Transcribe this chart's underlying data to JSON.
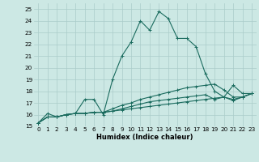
{
  "title": "",
  "xlabel": "Humidex (Indice chaleur)",
  "background_color": "#cce8e4",
  "grid_color": "#aaccca",
  "line_color": "#1a6b5e",
  "xlim": [
    -0.5,
    23.5
  ],
  "ylim": [
    15,
    25.5
  ],
  "yticks": [
    15,
    16,
    17,
    18,
    19,
    20,
    21,
    22,
    23,
    24,
    25
  ],
  "xticks": [
    0,
    1,
    2,
    3,
    4,
    5,
    6,
    7,
    8,
    9,
    10,
    11,
    12,
    13,
    14,
    15,
    16,
    17,
    18,
    19,
    20,
    21,
    22,
    23
  ],
  "series": [
    [
      15.3,
      16.1,
      15.8,
      16.0,
      16.1,
      17.3,
      17.3,
      16.0,
      19.0,
      21.0,
      22.2,
      24.0,
      23.2,
      24.8,
      24.2,
      22.5,
      22.5,
      21.8,
      19.5,
      18.0,
      17.5,
      18.5,
      17.8,
      17.8
    ],
    [
      15.3,
      15.8,
      15.8,
      16.0,
      16.1,
      16.1,
      16.2,
      16.2,
      16.5,
      16.8,
      17.0,
      17.3,
      17.5,
      17.7,
      17.9,
      18.1,
      18.3,
      18.4,
      18.5,
      18.6,
      18.1,
      17.5,
      17.5,
      17.8
    ],
    [
      15.3,
      15.8,
      15.8,
      16.0,
      16.1,
      16.1,
      16.2,
      16.2,
      16.3,
      16.5,
      16.7,
      16.9,
      17.1,
      17.2,
      17.3,
      17.4,
      17.5,
      17.6,
      17.7,
      17.3,
      17.5,
      17.2,
      17.5,
      17.8
    ],
    [
      15.3,
      15.8,
      15.8,
      16.0,
      16.1,
      16.1,
      16.2,
      16.2,
      16.3,
      16.4,
      16.5,
      16.6,
      16.7,
      16.8,
      16.9,
      17.0,
      17.1,
      17.2,
      17.3,
      17.4,
      17.5,
      17.3,
      17.5,
      17.8
    ]
  ],
  "tick_fontsize": 5.2,
  "xlabel_fontsize": 6.0
}
